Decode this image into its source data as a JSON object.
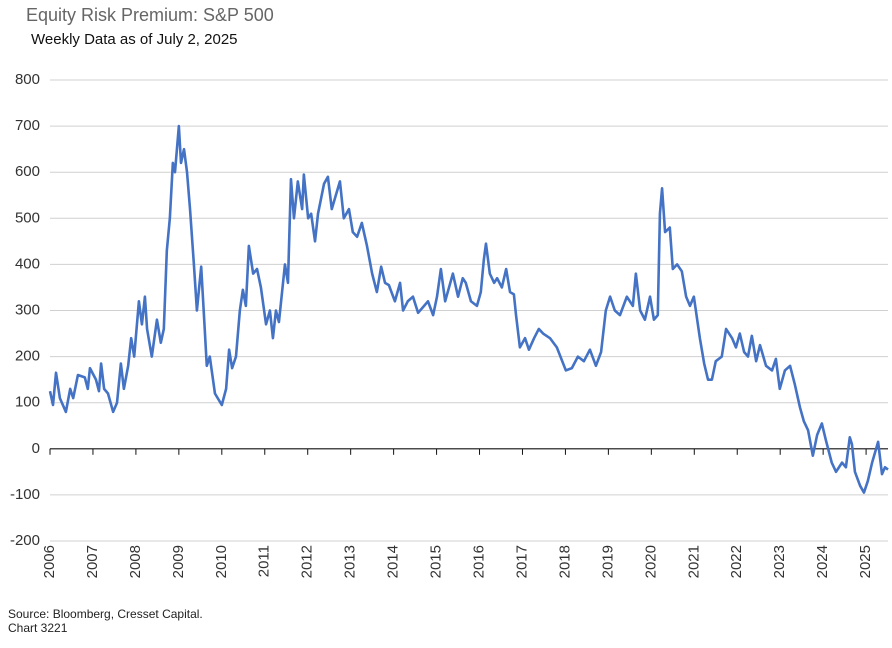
{
  "chart_data": {
    "type": "line",
    "title": "Equity Risk Premium: S&P 500",
    "subtitle": "Weekly Data as of July 2, 2025",
    "source": "Source: Bloomberg, Cresset Capital.",
    "note": "Chart 3221",
    "color": "#4472c4",
    "grid": true,
    "xlim": [
      2006,
      2025.51
    ],
    "xticks": [
      2006,
      2007,
      2008,
      2009,
      2010,
      2011,
      2012,
      2013,
      2014,
      2015,
      2016,
      2017,
      2018,
      2019,
      2020,
      2021,
      2022,
      2023,
      2024,
      2025
    ],
    "ylim": [
      -200,
      800
    ],
    "yticks": [
      -200,
      -100,
      0,
      100,
      200,
      300,
      400,
      500,
      600,
      700,
      800
    ],
    "x": [
      2006.0,
      2006.07,
      2006.14,
      2006.23,
      2006.37,
      2006.47,
      2006.54,
      2006.65,
      2006.81,
      2006.88,
      2006.93,
      2007.07,
      2007.14,
      2007.19,
      2007.26,
      2007.35,
      2007.47,
      2007.56,
      2007.65,
      2007.72,
      2007.82,
      2007.89,
      2007.96,
      2008.07,
      2008.14,
      2008.21,
      2008.26,
      2008.37,
      2008.49,
      2008.58,
      2008.65,
      2008.72,
      2008.79,
      2008.86,
      2008.91,
      2009.0,
      2009.05,
      2009.12,
      2009.19,
      2009.26,
      2009.35,
      2009.42,
      2009.52,
      2009.59,
      2009.65,
      2009.72,
      2009.84,
      2010.0,
      2010.1,
      2010.17,
      2010.24,
      2010.33,
      2010.42,
      2010.49,
      2010.56,
      2010.63,
      2010.73,
      2010.82,
      2010.91,
      2011.03,
      2011.12,
      2011.19,
      2011.26,
      2011.33,
      2011.47,
      2011.54,
      2011.61,
      2011.68,
      2011.77,
      2011.87,
      2011.91,
      2012.01,
      2012.08,
      2012.17,
      2012.24,
      2012.38,
      2012.47,
      2012.56,
      2012.75,
      2012.84,
      2012.96,
      2013.05,
      2013.15,
      2013.26,
      2013.38,
      2013.5,
      2013.61,
      2013.71,
      2013.8,
      2013.89,
      2014.03,
      2014.15,
      2014.22,
      2014.33,
      2014.45,
      2014.57,
      2014.71,
      2014.8,
      2014.92,
      2015.01,
      2015.1,
      2015.2,
      2015.29,
      2015.38,
      2015.5,
      2015.61,
      2015.68,
      2015.8,
      2015.94,
      2016.03,
      2016.1,
      2016.15,
      2016.24,
      2016.34,
      2016.41,
      2016.52,
      2016.62,
      2016.71,
      2016.8,
      2016.85,
      2016.94,
      2017.06,
      2017.15,
      2017.27,
      2017.38,
      2017.48,
      2017.64,
      2017.8,
      2018.01,
      2018.15,
      2018.29,
      2018.43,
      2018.57,
      2018.71,
      2018.83,
      2018.94,
      2019.04,
      2019.15,
      2019.27,
      2019.43,
      2019.57,
      2019.64,
      2019.74,
      2019.85,
      2019.97,
      2020.06,
      2020.15,
      2020.2,
      2020.25,
      2020.32,
      2020.43,
      2020.5,
      2020.6,
      2020.71,
      2020.81,
      2020.9,
      2020.99,
      2021.13,
      2021.23,
      2021.32,
      2021.41,
      2021.5,
      2021.64,
      2021.74,
      2021.88,
      2021.97,
      2022.06,
      2022.16,
      2022.25,
      2022.34,
      2022.44,
      2022.53,
      2022.67,
      2022.81,
      2022.9,
      2022.99,
      2023.11,
      2023.23,
      2023.34,
      2023.46,
      2023.55,
      2023.65,
      2023.76,
      2023.86,
      2023.97,
      2024.06,
      2024.2,
      2024.3,
      2024.44,
      2024.53,
      2024.62,
      2024.67,
      2024.74,
      2024.86,
      2024.95,
      2025.04,
      2025.14,
      2025.28,
      2025.37,
      2025.44,
      2025.51
    ],
    "values": [
      125,
      95,
      165,
      110,
      80,
      130,
      110,
      160,
      155,
      130,
      175,
      150,
      125,
      185,
      130,
      120,
      80,
      100,
      185,
      130,
      180,
      240,
      200,
      320,
      270,
      330,
      260,
      200,
      280,
      230,
      260,
      430,
      500,
      620,
      600,
      700,
      620,
      650,
      600,
      520,
      400,
      300,
      395,
      280,
      180,
      200,
      120,
      95,
      130,
      215,
      175,
      200,
      300,
      345,
      310,
      440,
      380,
      390,
      350,
      270,
      300,
      240,
      300,
      275,
      400,
      360,
      585,
      500,
      580,
      520,
      595,
      500,
      510,
      450,
      510,
      575,
      590,
      520,
      580,
      500,
      520,
      470,
      460,
      490,
      440,
      380,
      340,
      395,
      360,
      355,
      320,
      360,
      300,
      320,
      330,
      295,
      310,
      320,
      290,
      330,
      390,
      320,
      350,
      380,
      330,
      370,
      360,
      320,
      310,
      340,
      410,
      445,
      380,
      360,
      370,
      350,
      390,
      340,
      335,
      290,
      220,
      240,
      215,
      240,
      260,
      250,
      240,
      220,
      170,
      175,
      200,
      190,
      215,
      180,
      210,
      300,
      330,
      300,
      290,
      330,
      310,
      380,
      300,
      280,
      330,
      280,
      290,
      510,
      565,
      470,
      480,
      390,
      400,
      385,
      330,
      310,
      330,
      240,
      185,
      150,
      150,
      190,
      200,
      260,
      240,
      220,
      250,
      210,
      200,
      245,
      190,
      225,
      180,
      170,
      195,
      130,
      170,
      180,
      140,
      90,
      60,
      40,
      -15,
      30,
      55,
      20,
      -30,
      -50,
      -30,
      -40,
      25,
      10,
      -50,
      -80,
      -95,
      -70,
      -30,
      15,
      -55,
      -40,
      -45
    ]
  }
}
